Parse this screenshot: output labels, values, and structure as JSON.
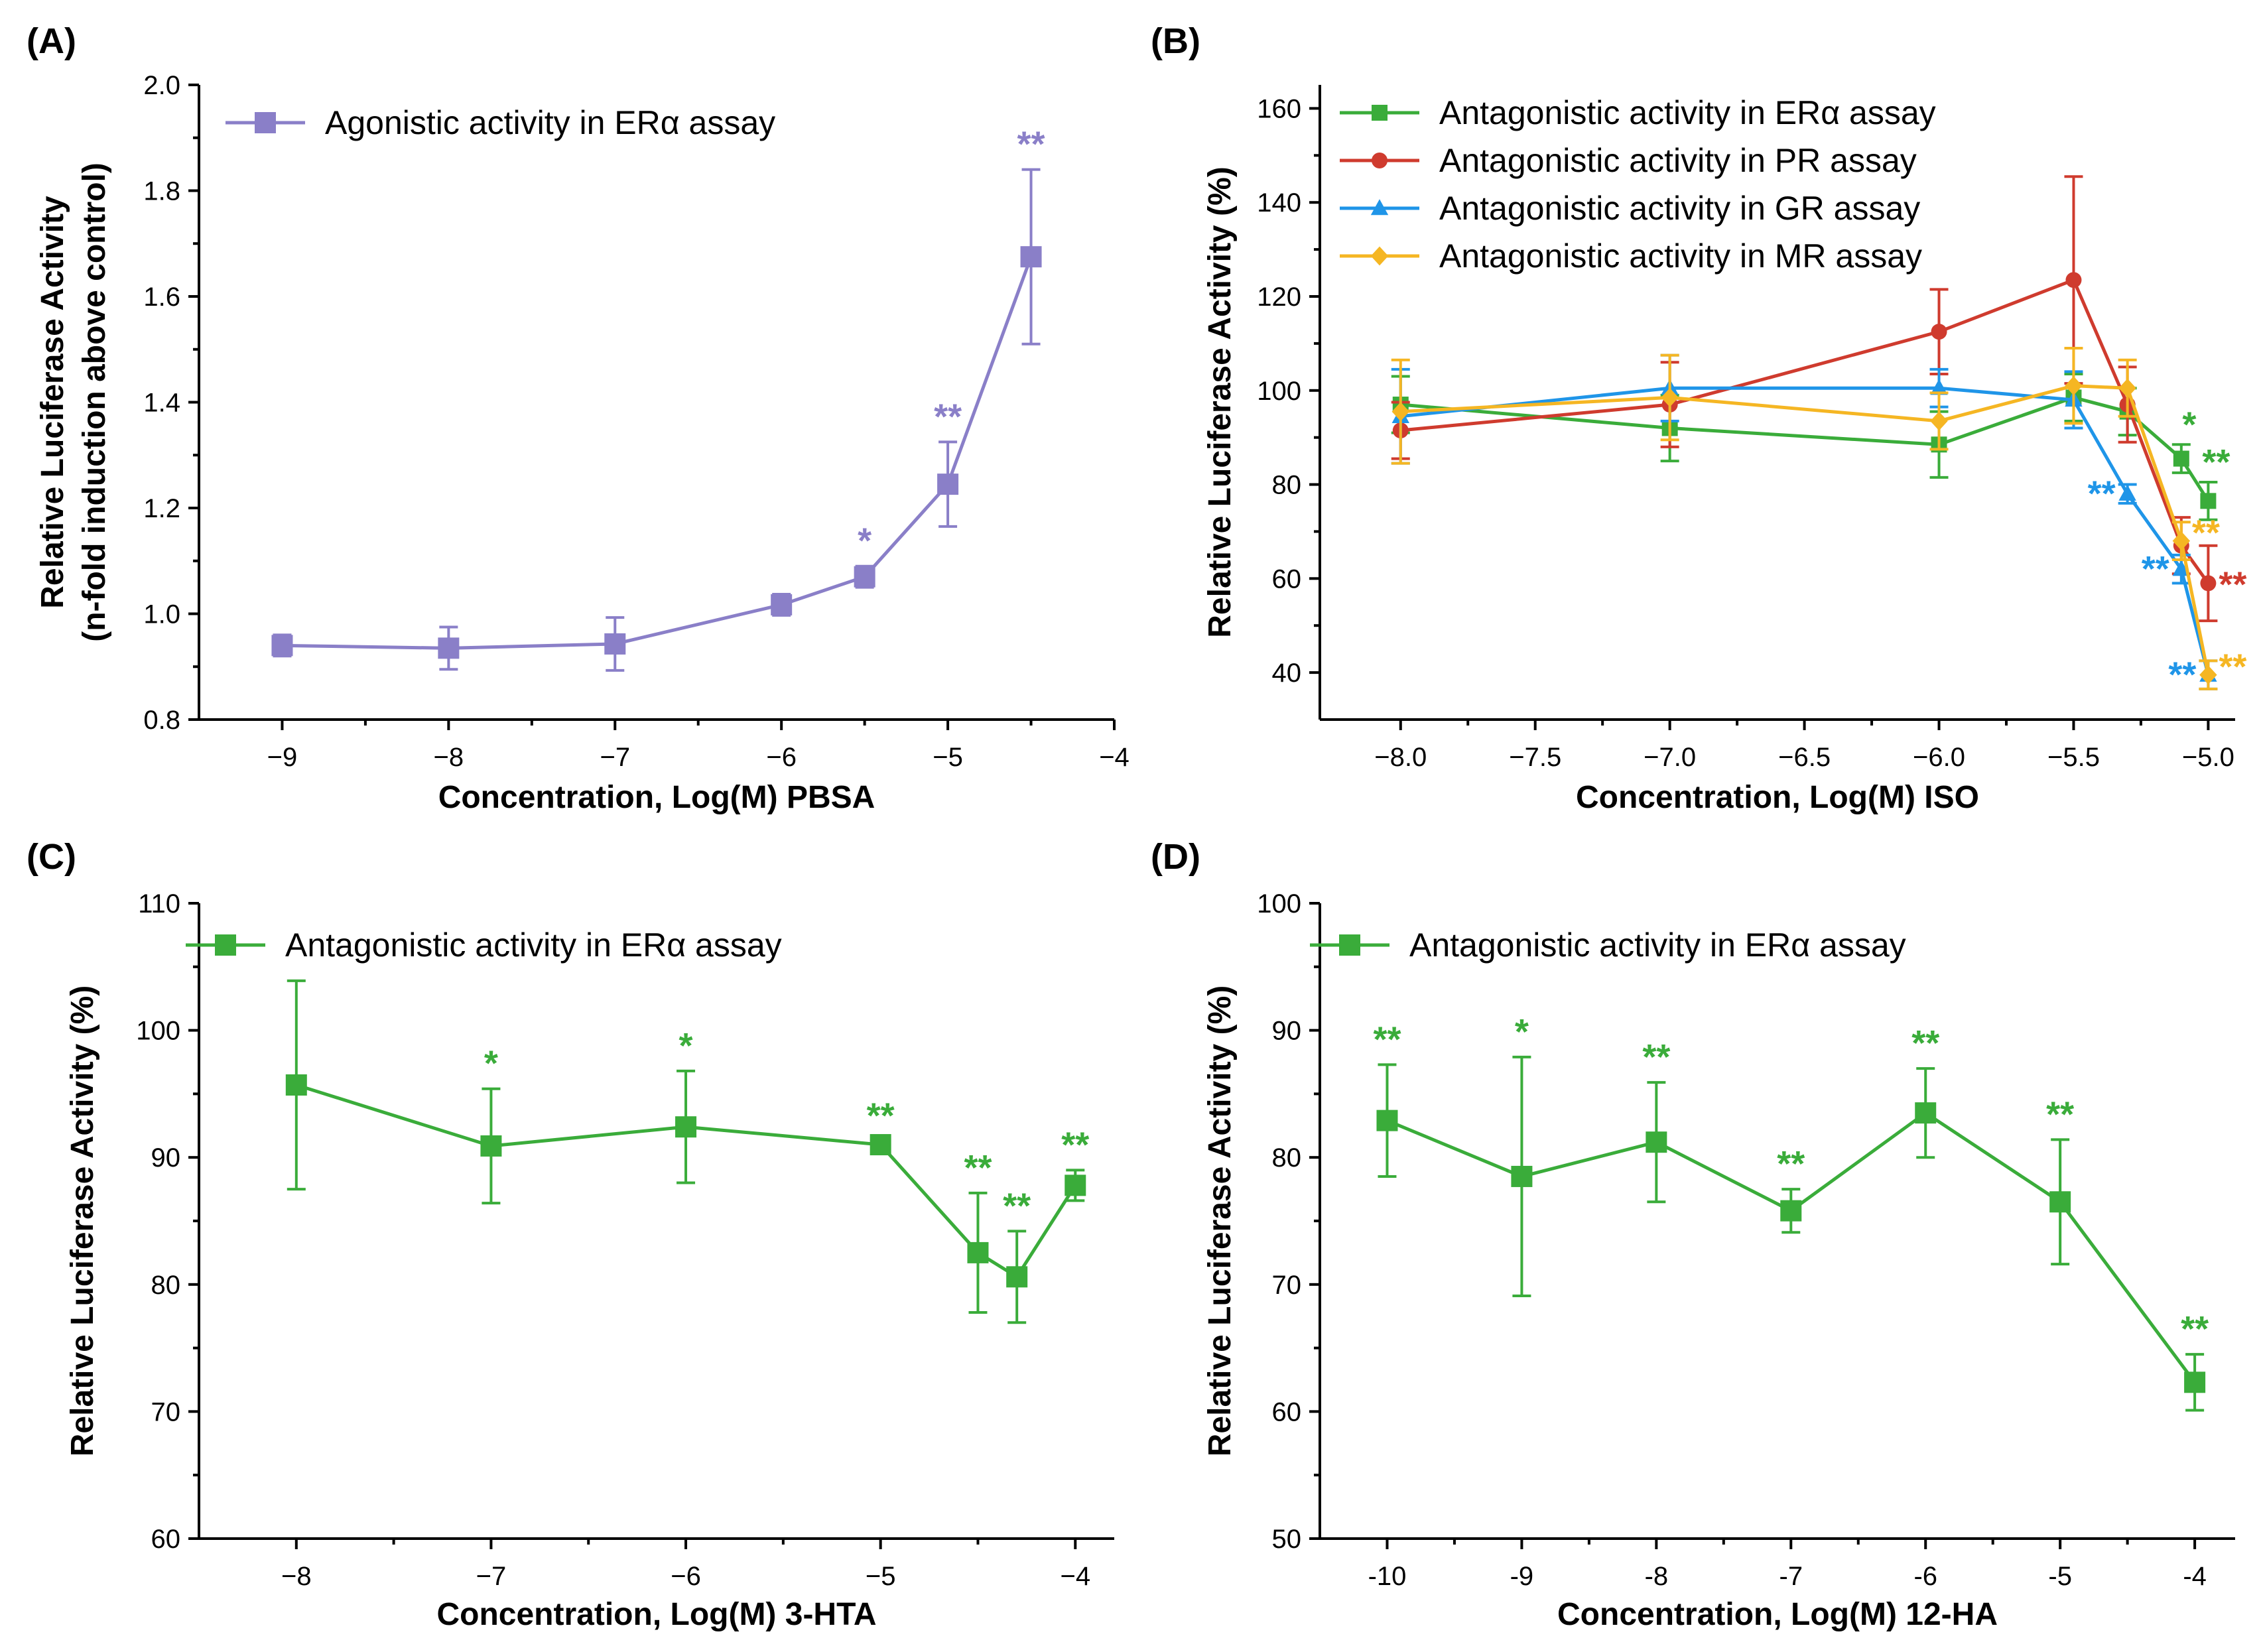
{
  "chart_data": [
    {
      "panel": "(A)",
      "type": "line",
      "xlabel": "Concentration, Log(M) PBSA",
      "ylabel_lines": [
        "Relative Luciferase Activity",
        "(n-fold induction above control)"
      ],
      "xlim": [
        -9.5,
        -4
      ],
      "ylim": [
        0.8,
        2.0
      ],
      "xticks": [
        -9,
        -8,
        -7,
        -6,
        -5,
        -4
      ],
      "xtick_labels": [
        "−9",
        "−8",
        "−7",
        "−6",
        "−5",
        "−4"
      ],
      "yticks": [
        0.8,
        1.0,
        1.2,
        1.4,
        1.6,
        1.8,
        2.0
      ],
      "ytick_labels": [
        "0.8",
        "1.0",
        "1.2",
        "1.4",
        "1.6",
        "1.8",
        "2.0"
      ],
      "legend": "top-left",
      "series": [
        {
          "name": "Agonistic activity in ERα assay",
          "color": "#8a7fc8",
          "marker": "square",
          "x": [
            -9,
            -8,
            -7,
            -6,
            -5.5,
            -5,
            -4.5
          ],
          "y": [
            0.94,
            0.935,
            0.943,
            1.017,
            1.07,
            1.245,
            1.675
          ],
          "err": [
            0.02,
            0.04,
            0.05,
            0.02,
            0.02,
            0.08,
            0.165
          ],
          "sig": [
            "",
            "",
            "",
            "",
            "*",
            "**",
            "**"
          ]
        }
      ]
    },
    {
      "panel": "(B)",
      "type": "line",
      "xlabel": "Concentration, Log(M) ISO",
      "ylabel_lines": [
        "Relative Luciferase Activity (%)"
      ],
      "xlim": [
        -8.3,
        -4.9
      ],
      "ylim": [
        30,
        165
      ],
      "xticks": [
        -8.0,
        -7.5,
        -7.0,
        -6.5,
        -6.0,
        -5.5,
        -5.0
      ],
      "xtick_labels": [
        "−8.0",
        "−7.5",
        "−7.0",
        "−6.5",
        "−6.0",
        "−5.5",
        "−5.0"
      ],
      "yticks": [
        40,
        60,
        80,
        100,
        120,
        140,
        160
      ],
      "ytick_labels": [
        "40",
        "60",
        "80",
        "100",
        "120",
        "140",
        "160"
      ],
      "legend": "top-left",
      "series": [
        {
          "name": "Antagonistic activity in ERα assay",
          "color": "#3aac3a",
          "marker": "square",
          "x": [
            -8,
            -7,
            -6,
            -5.5,
            -5.3,
            -5.1,
            -5.0
          ],
          "y": [
            97,
            92,
            88.5,
            98.5,
            95.5,
            85.5,
            76.5
          ],
          "err": [
            6,
            7,
            7,
            5,
            5,
            3,
            4
          ],
          "sig": [
            "",
            "",
            "",
            "",
            "",
            "*",
            "**"
          ]
        },
        {
          "name": "Antagonistic activity in PR assay",
          "color": "#cf3b2e",
          "marker": "circle",
          "x": [
            -8,
            -7,
            -6,
            -5.5,
            -5.3,
            -5.1,
            -5.0
          ],
          "y": [
            91.5,
            97,
            112.5,
            123.5,
            97,
            67,
            59
          ],
          "err": [
            6,
            9,
            9,
            22,
            8,
            6,
            8
          ],
          "sig": [
            "",
            "",
            "",
            "",
            "",
            "",
            "**"
          ]
        },
        {
          "name": "Antagonistic activity in GR assay",
          "color": "#1f95e8",
          "marker": "triangle",
          "x": [
            -8,
            -7,
            -6,
            -5.5,
            -5.3,
            -5.1,
            -5.0
          ],
          "y": [
            94.5,
            100.5,
            100.5,
            98,
            78,
            62,
            39.5
          ],
          "err": [
            10,
            7,
            4,
            6,
            2,
            3,
            3
          ],
          "sig": [
            "",
            "",
            "",
            "",
            "**",
            "**",
            "**"
          ]
        },
        {
          "name": "Antagonistic activity in MR assay",
          "color": "#f5b623",
          "marker": "diamond",
          "x": [
            -8,
            -7,
            -6,
            -5.5,
            -5.3,
            -5.1,
            -5.0
          ],
          "y": [
            95.5,
            98.5,
            93.5,
            101,
            100.5,
            68,
            39.5
          ],
          "err": [
            11,
            9,
            6,
            8,
            6,
            4,
            3
          ],
          "sig": [
            "",
            "",
            "",
            "",
            "",
            "**",
            "**"
          ]
        }
      ]
    },
    {
      "panel": "(C)",
      "type": "line",
      "xlabel": "Concentration, Log(M) 3-HTA",
      "ylabel_lines": [
        "Relative Luciferase Activity (%)"
      ],
      "xlim": [
        -8.5,
        -3.8
      ],
      "ylim": [
        60,
        110
      ],
      "xticks": [
        -8,
        -7,
        -6,
        -5,
        -4
      ],
      "xtick_labels": [
        "−8",
        "−7",
        "−6",
        "−5",
        "−4"
      ],
      "yticks": [
        60,
        70,
        80,
        90,
        100,
        110
      ],
      "ytick_labels": [
        "60",
        "70",
        "80",
        "90",
        "100",
        "110"
      ],
      "legend": "top-left",
      "series": [
        {
          "name": "Antagonistic activity in ERα assay",
          "color": "#3aac3a",
          "marker": "square",
          "x": [
            -8,
            -7,
            -6,
            -5,
            -4.5,
            -4.3,
            -4
          ],
          "y": [
            95.7,
            90.9,
            92.4,
            91,
            82.5,
            80.6,
            87.8
          ],
          "err": [
            8.2,
            4.5,
            4.4,
            0.3,
            4.7,
            3.6,
            1.2
          ],
          "sig": [
            "",
            "*",
            "*",
            "**",
            "**",
            "**",
            "**"
          ]
        }
      ]
    },
    {
      "panel": "(D)",
      "type": "line",
      "xlabel": "Concentration, Log(M) 12-HA",
      "ylabel_lines": [
        "Relative Luciferase Activity (%)"
      ],
      "xlim": [
        -10.5,
        -3.7
      ],
      "ylim": [
        50,
        100
      ],
      "xticks": [
        -10,
        -9,
        -8,
        -7,
        -6,
        -5,
        -4
      ],
      "xtick_labels": [
        "-10",
        "-9",
        "-8",
        "-7",
        "-6",
        "-5",
        "-4"
      ],
      "yticks": [
        50,
        60,
        70,
        80,
        90,
        100
      ],
      "ytick_labels": [
        "50",
        "60",
        "70",
        "80",
        "90",
        "100"
      ],
      "legend": "top-left",
      "series": [
        {
          "name": "Antagonistic activity in ERα assay",
          "color": "#3aac3a",
          "marker": "square",
          "x": [
            -10,
            -9,
            -8,
            -7,
            -6,
            -5,
            -4
          ],
          "y": [
            82.9,
            78.5,
            81.2,
            75.8,
            83.5,
            76.5,
            62.3
          ],
          "err": [
            4.4,
            9.4,
            4.7,
            1.7,
            3.5,
            4.9,
            2.2
          ],
          "sig": [
            "**",
            "*",
            "**",
            "**",
            "**",
            "**",
            "**"
          ]
        }
      ]
    }
  ]
}
